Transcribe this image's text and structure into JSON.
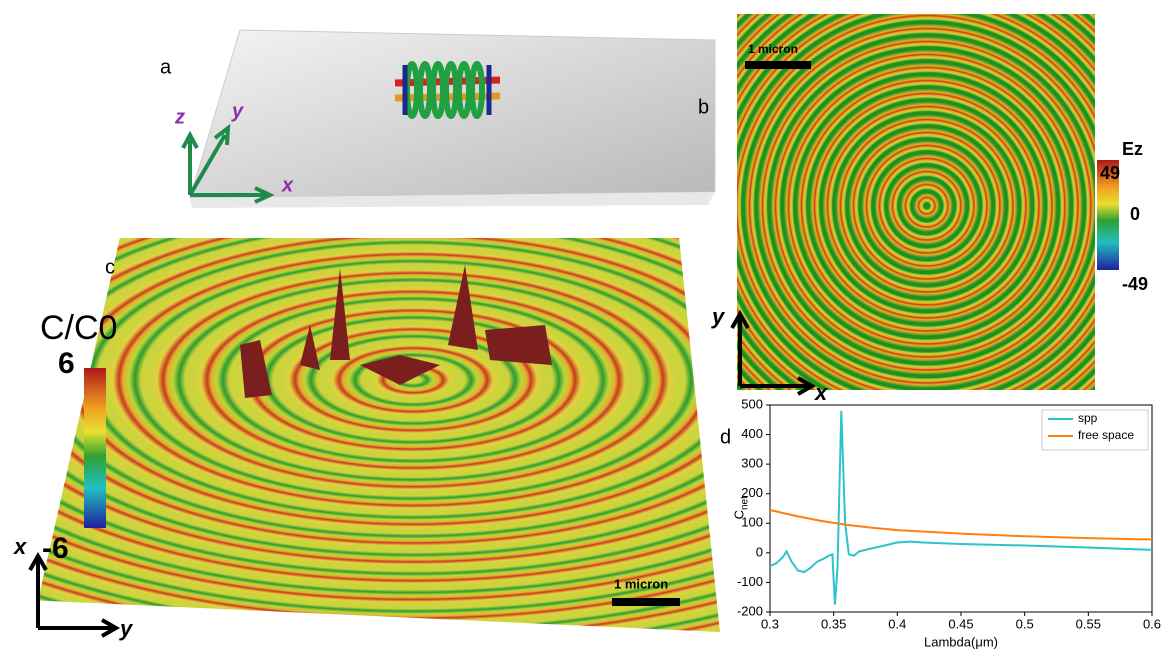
{
  "panels": {
    "a": {
      "label": "a",
      "axis_labels": [
        "z",
        "y",
        "x"
      ]
    },
    "b": {
      "label": "b",
      "scale_bar": "1 micron",
      "colorbar_title": "Ez",
      "colorbar_max": "49",
      "colorbar_mid": "0",
      "colorbar_min": "-49",
      "axis_labels": [
        "y",
        "x"
      ]
    },
    "c": {
      "label": "c",
      "colorbar_title": "C/C0",
      "colorbar_max": "6",
      "colorbar_min": "-6",
      "scale_bar": "1 micron",
      "axis_labels": [
        "x",
        "y"
      ]
    },
    "d": {
      "label": "d"
    }
  },
  "chart_data": {
    "type": "line",
    "x_label": "Lambda(μm)",
    "y_label": {
      "main": "C",
      "sub": "net"
    },
    "xlim": [
      0.3,
      0.6
    ],
    "xticks": [
      0.3,
      0.35,
      0.4,
      0.45,
      0.5,
      0.55,
      0.6
    ],
    "ylim": [
      -200,
      500
    ],
    "yticks": [
      -200,
      -100,
      0,
      100,
      200,
      300,
      400,
      500
    ],
    "legend": "upper right",
    "series": [
      {
        "name": "spp",
        "color": "#2cc4c8",
        "x": [
          0.3,
          0.305,
          0.31,
          0.313,
          0.317,
          0.322,
          0.327,
          0.332,
          0.337,
          0.342,
          0.346,
          0.349,
          0.351,
          0.353,
          0.356,
          0.359,
          0.362,
          0.366,
          0.37,
          0.38,
          0.39,
          0.4,
          0.41,
          0.42,
          0.45,
          0.5,
          0.55,
          0.6
        ],
        "values": [
          -45,
          -35,
          -15,
          5,
          -30,
          -60,
          -65,
          -50,
          -30,
          -20,
          -10,
          -5,
          -175,
          -50,
          480,
          100,
          -5,
          -10,
          5,
          15,
          25,
          35,
          38,
          35,
          30,
          25,
          18,
          10
        ]
      },
      {
        "name": "free space",
        "color": "#ff7f0e",
        "x": [
          0.3,
          0.32,
          0.34,
          0.36,
          0.38,
          0.4,
          0.45,
          0.5,
          0.55,
          0.6
        ],
        "values": [
          145,
          125,
          108,
          95,
          85,
          77,
          65,
          56,
          50,
          45
        ]
      }
    ]
  }
}
